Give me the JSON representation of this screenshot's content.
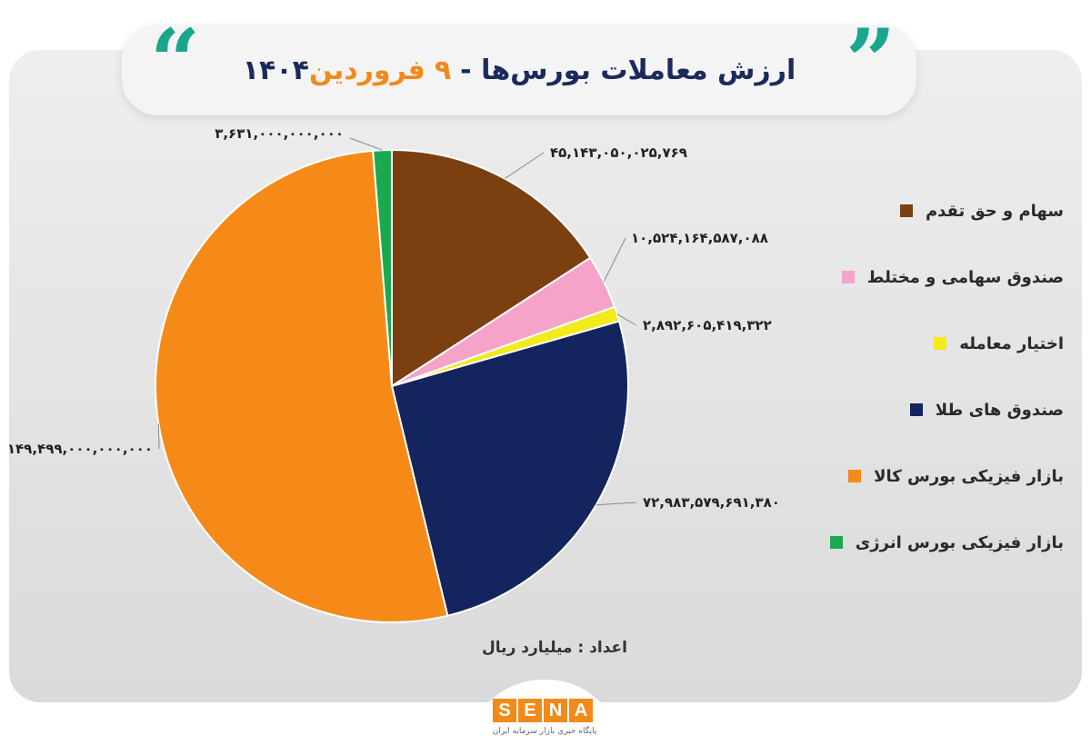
{
  "header": {
    "title_main": "ارزش معاملات بورس‌ها -",
    "title_day": "۹",
    "title_month": "فروردین",
    "title_year": "۱۴۰۴"
  },
  "chart_data": {
    "type": "pie",
    "unit_note": "اعداد : میلیارد ریال",
    "slices": [
      {
        "label": "سهام و حق تقدم",
        "value": 45143050025769,
        "value_text": "۴۵,۱۴۳,۰۵۰,۰۲۵,۷۶۹",
        "color": "#7b3f10"
      },
      {
        "label": "صندوق سهامی و مختلط",
        "value": 10524164587088,
        "value_text": "۱۰,۵۲۴,۱۶۴,۵۸۷,۰۸۸",
        "color": "#f5a3c8"
      },
      {
        "label": "اختیار معامله",
        "value": 2892605419322,
        "value_text": "۲,۸۹۲,۶۰۵,۴۱۹,۳۲۲",
        "color": "#f2ea1b"
      },
      {
        "label": "صندوق های طلا",
        "value": 72983579691380,
        "value_text": "۷۲,۹۸۳,۵۷۹,۶۹۱,۳۸۰",
        "color": "#14245e"
      },
      {
        "label": "بازار فیزیکی بورس کالا",
        "value": 149499000000000,
        "value_text": "۱۴۹,۴۹۹,۰۰۰,۰۰۰,۰۰۰",
        "color": "#f58a18"
      },
      {
        "label": "بازار فیزیکی بورس انرژی",
        "value": 3631000000000,
        "value_text": "۳,۶۳۱,۰۰۰,۰۰۰,۰۰۰",
        "color": "#1aa94f"
      }
    ]
  },
  "legend": {
    "items": [
      {
        "label": "سهام و حق تقدم",
        "color": "#7b3f10"
      },
      {
        "label": "صندوق سهامی و مختلط",
        "color": "#f5a3c8"
      },
      {
        "label": "اختیار معامله",
        "color": "#f2ea1b"
      },
      {
        "label": "صندوق های طلا",
        "color": "#14245e"
      },
      {
        "label": "بازار فیزیکی بورس کالا",
        "color": "#f58a18"
      },
      {
        "label": "بازار فیزیکی بورس انرژی",
        "color": "#1aa94f"
      }
    ]
  },
  "logo": {
    "letters": [
      "S",
      "E",
      "N",
      "A"
    ],
    "subtitle": "پایگاه خبری بازار سرمایه ایران"
  }
}
